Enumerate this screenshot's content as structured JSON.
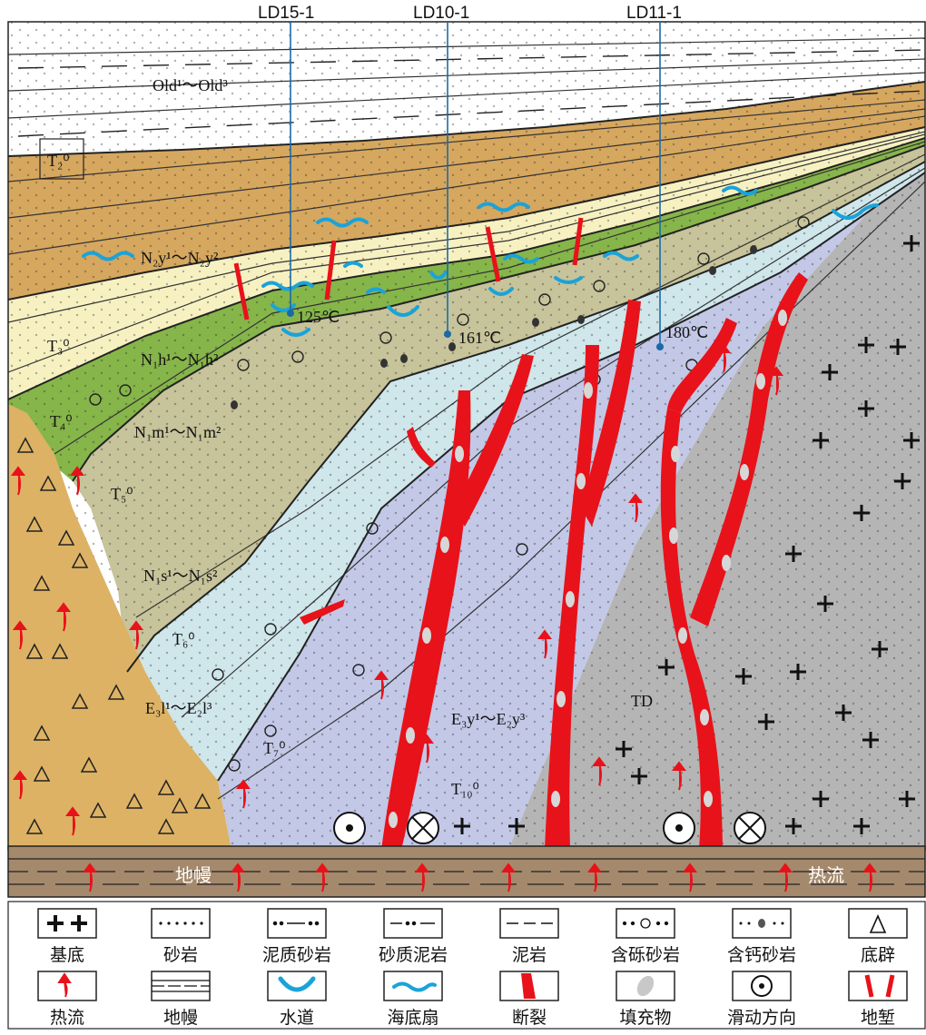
{
  "wells": [
    {
      "name": "LD15-1",
      "temp": "125℃"
    },
    {
      "name": "LD10-1",
      "temp": "161℃"
    },
    {
      "name": "LD11-1",
      "temp": "180℃"
    }
  ],
  "formations": {
    "old": "Old¹～Old³",
    "ny": "N₂y¹～N₂y²",
    "nh": "N₁h¹～N₁h²",
    "nm": "N₁m¹～N₁m²",
    "ns": "N₁s¹～N₁s²",
    "el": "E₃l¹～E₂l³",
    "ey": "E₃y¹～E₂y³",
    "td": "TD"
  },
  "horizons": {
    "t2": "T₂⁰",
    "t3": "T₃⁰",
    "t4": "T₄⁰",
    "t5": "T₅⁰",
    "t6": "T₆⁰",
    "t7": "T₇⁰",
    "t10": "T₁₀⁰"
  },
  "mantle_labels": {
    "mantle": "地幔",
    "heat_flow": "热流"
  },
  "legend": [
    {
      "label": "基底",
      "icon": "basement-icon"
    },
    {
      "label": "砂岩",
      "icon": "sandstone-icon"
    },
    {
      "label": "泥质砂岩",
      "icon": "muddy-sandstone-icon"
    },
    {
      "label": "砂质泥岩",
      "icon": "sandy-mudstone-icon"
    },
    {
      "label": "泥岩",
      "icon": "mudstone-icon"
    },
    {
      "label": "含砾砂岩",
      "icon": "pebbly-sandstone-icon"
    },
    {
      "label": "含钙砂岩",
      "icon": "calcareous-sandstone-icon"
    },
    {
      "label": "底辟",
      "icon": "diapir-icon"
    },
    {
      "label": "热流",
      "icon": "heat-flow-icon"
    },
    {
      "label": "地幔",
      "icon": "mantle-icon"
    },
    {
      "label": "水道",
      "icon": "channel-icon"
    },
    {
      "label": "海底扇",
      "icon": "submarine-fan-icon"
    },
    {
      "label": "断裂",
      "icon": "fault-icon"
    },
    {
      "label": "填充物",
      "icon": "filling-icon"
    },
    {
      "label": "滑动方向",
      "icon": "slip-direction-icon"
    },
    {
      "label": "地堑",
      "icon": "graben-icon"
    }
  ],
  "colors": {
    "old": "#ffffff",
    "ny": "#d6a75f",
    "nh": "#f7f1c2",
    "nm": "#86b54a",
    "ns": "#c7c39a",
    "el": "#cfe6ea",
    "ey": "#c2c8e6",
    "td": "#b5b5b5",
    "diapir": "#ddb265",
    "mantle": "#a5896c",
    "fault": "#e8121a",
    "channel": "#1aa3d9",
    "heat": "#e8121a"
  }
}
